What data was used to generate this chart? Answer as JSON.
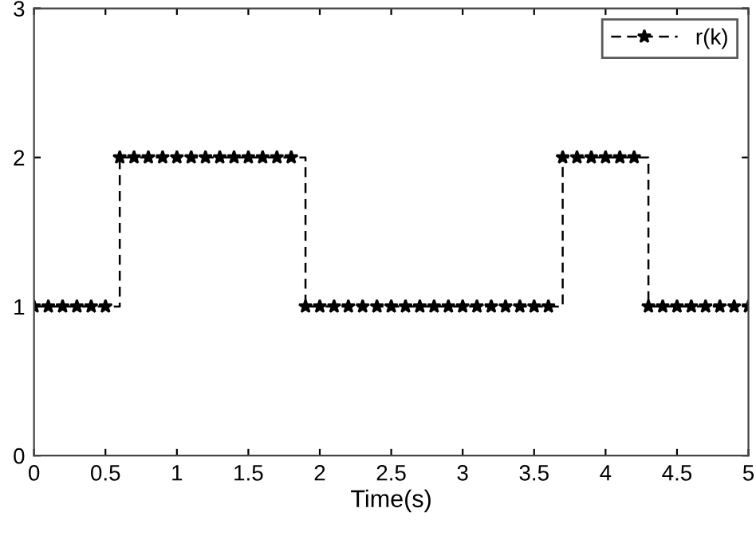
{
  "chart_data": {
    "type": "step",
    "xlabel": "Time(s)",
    "x": [
      0,
      0.1,
      0.2,
      0.3,
      0.4,
      0.5,
      0.6,
      0.7,
      0.8,
      0.9,
      1.0,
      1.1,
      1.2,
      1.3,
      1.4,
      1.5,
      1.6,
      1.7,
      1.8,
      1.9,
      2.0,
      2.1,
      2.2,
      2.3,
      2.4,
      2.5,
      2.6,
      2.7,
      2.8,
      2.9,
      3.0,
      3.1,
      3.2,
      3.3,
      3.4,
      3.5,
      3.6,
      3.7,
      3.8,
      3.9,
      4.0,
      4.1,
      4.2,
      4.3,
      4.4,
      4.5,
      4.6,
      4.7,
      4.8,
      4.9,
      5.0
    ],
    "series": [
      {
        "name": "r(k)",
        "color": "#000000",
        "values": [
          1,
          1,
          1,
          1,
          1,
          1,
          2,
          2,
          2,
          2,
          2,
          2,
          2,
          2,
          2,
          2,
          2,
          2,
          2,
          1,
          1,
          1,
          1,
          1,
          1,
          1,
          1,
          1,
          1,
          1,
          1,
          1,
          1,
          1,
          1,
          1,
          1,
          2,
          2,
          2,
          2,
          2,
          2,
          1,
          1,
          1,
          1,
          1,
          1,
          1,
          1
        ]
      }
    ],
    "xlim": [
      0,
      5
    ],
    "ylim": [
      0,
      3
    ],
    "xticks": [
      0,
      0.5,
      1,
      1.5,
      2,
      2.5,
      3,
      3.5,
      4,
      4.5,
      5
    ],
    "yticks": [
      0,
      1,
      2,
      3
    ],
    "grid": false,
    "legend": "top right",
    "marker": "star",
    "line_style": "dashed"
  }
}
